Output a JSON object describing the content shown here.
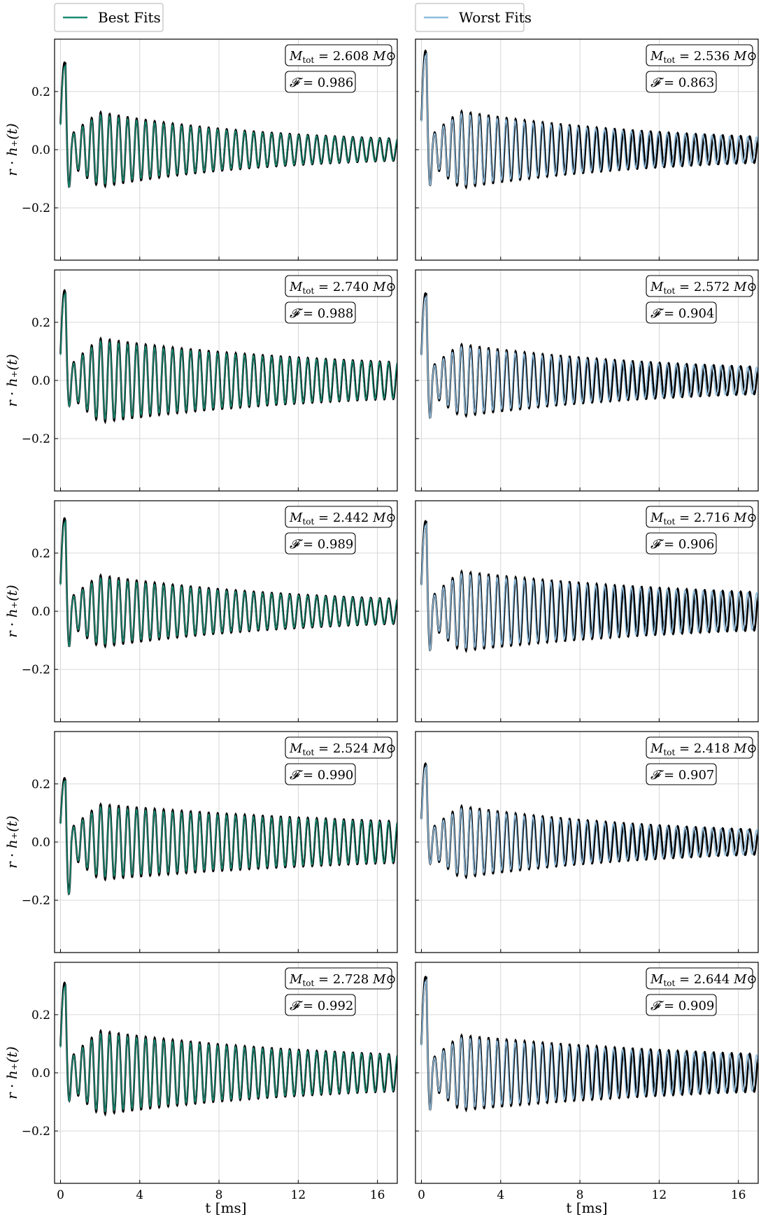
{
  "chart_data": {
    "type": "line",
    "layout": "5x2 grid of waveform panels",
    "legend": [
      {
        "label": "Best Fits",
        "color": "#1a8a72",
        "column": 0
      },
      {
        "label": "Worst Fits",
        "color": "#8fbcdd",
        "column": 1
      }
    ],
    "reference_color": "#000000",
    "xlabel": "t [ms]",
    "ylabel": "r · h₊(t)",
    "xlim": [
      -0.3,
      17.0
    ],
    "ylim": [
      -0.38,
      0.38
    ],
    "xticks": [
      0,
      4,
      8,
      12,
      16
    ],
    "yticks": [
      -0.2,
      0.0,
      0.2
    ],
    "ytick_labels": [
      "−0.2",
      "0.0",
      "0.2"
    ],
    "grid": true,
    "mass_label_prefix": "M",
    "mass_label_sub": "tot",
    "mass_label_unit": "M⊙",
    "fitness_symbol": "𝓕",
    "panels": [
      {
        "row": 0,
        "col": 0,
        "series": "Best Fits",
        "mtot": "2.608",
        "fitness": "0.986",
        "ref_amp": 0.15,
        "fit_amp": 0.14,
        "decay": 0.12,
        "tail": 0.02,
        "peak": 0.3,
        "trough": -0.26
      },
      {
        "row": 1,
        "col": 0,
        "series": "Best Fits",
        "mtot": "2.740",
        "fitness": "0.988",
        "ref_amp": 0.16,
        "fit_amp": 0.15,
        "decay": 0.09,
        "tail": 0.035,
        "peak": 0.31,
        "trough": -0.22
      },
      {
        "row": 2,
        "col": 0,
        "series": "Best Fits",
        "mtot": "2.442",
        "fitness": "0.989",
        "ref_amp": 0.14,
        "fit_amp": 0.13,
        "decay": 0.1,
        "tail": 0.02,
        "peak": 0.32,
        "trough": -0.26
      },
      {
        "row": 3,
        "col": 0,
        "series": "Best Fits",
        "mtot": "2.524",
        "fitness": "0.990",
        "ref_amp": 0.14,
        "fit_amp": 0.13,
        "decay": 0.07,
        "tail": 0.04,
        "peak": 0.22,
        "trough": -0.28
      },
      {
        "row": 4,
        "col": 0,
        "series": "Best Fits",
        "mtot": "2.728",
        "fitness": "0.992",
        "ref_amp": 0.16,
        "fit_amp": 0.15,
        "decay": 0.09,
        "tail": 0.035,
        "peak": 0.31,
        "trough": -0.23
      },
      {
        "row": 0,
        "col": 1,
        "series": "Worst Fits",
        "mtot": "2.536",
        "fitness": "0.863",
        "ref_amp": 0.15,
        "fit_amp": 0.14,
        "decay": 0.1,
        "tail": 0.02,
        "peak": 0.34,
        "trough": -0.27
      },
      {
        "row": 1,
        "col": 1,
        "series": "Worst Fits",
        "mtot": "2.572",
        "fitness": "0.904",
        "ref_amp": 0.14,
        "fit_amp": 0.13,
        "decay": 0.1,
        "tail": 0.025,
        "peak": 0.3,
        "trough": -0.26
      },
      {
        "row": 2,
        "col": 1,
        "series": "Worst Fits",
        "mtot": "2.716",
        "fitness": "0.906",
        "ref_amp": 0.15,
        "fit_amp": 0.14,
        "decay": 0.08,
        "tail": 0.035,
        "peak": 0.31,
        "trough": -0.27
      },
      {
        "row": 3,
        "col": 1,
        "series": "Worst Fits",
        "mtot": "2.418",
        "fitness": "0.907",
        "ref_amp": 0.14,
        "fit_amp": 0.13,
        "decay": 0.1,
        "tail": 0.02,
        "peak": 0.27,
        "trough": -0.19
      },
      {
        "row": 4,
        "col": 1,
        "series": "Worst Fits",
        "mtot": "2.644",
        "fitness": "0.909",
        "ref_amp": 0.14,
        "fit_amp": 0.13,
        "decay": 0.07,
        "tail": 0.03,
        "peak": 0.33,
        "trough": -0.27
      }
    ]
  }
}
